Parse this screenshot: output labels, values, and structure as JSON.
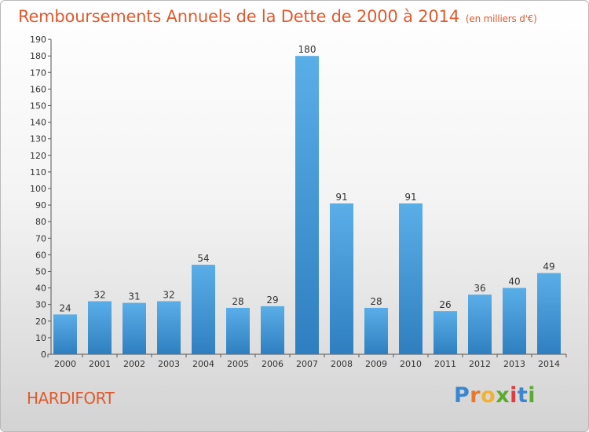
{
  "title": "Remboursements Annuels de la Dette de 2000 à 2014",
  "subtitle": "(en milliers d'€)",
  "commune": "HARDIFORT",
  "logo": {
    "letters": [
      "P",
      "r",
      "o",
      "x",
      "i",
      "t",
      "i"
    ],
    "colors": [
      "#3a86d1",
      "#e8792b",
      "#f2b233",
      "#5cab2f",
      "#e23b3b",
      "#3a86d1",
      "#5cab2f"
    ]
  },
  "chart_data": {
    "type": "bar",
    "categories": [
      "2000",
      "2001",
      "2002",
      "2003",
      "2004",
      "2005",
      "2006",
      "2007",
      "2008",
      "2009",
      "2010",
      "2011",
      "2012",
      "2013",
      "2014"
    ],
    "values": [
      24,
      32,
      31,
      32,
      54,
      28,
      29,
      180,
      91,
      28,
      91,
      26,
      36,
      40,
      49
    ],
    "ylim": [
      0,
      190
    ],
    "ytick_step": 10,
    "grid": false,
    "bar_color_light": "#5aaee8",
    "bar_color_dark": "#2f7fc0"
  }
}
